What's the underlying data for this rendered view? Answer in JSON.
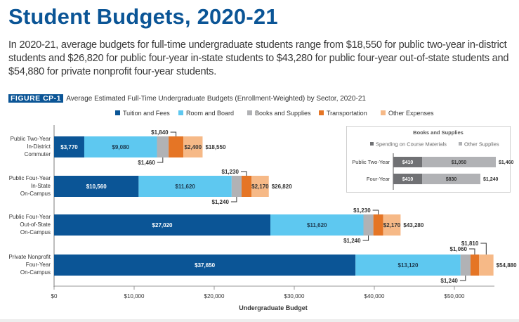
{
  "page": {
    "title": "Student Budgets, 2020-21",
    "description": "In 2020-21, average budgets for full-time undergraduate students range from $18,550 for public two-year in-district students and $26,820 for public four-year in-state students to $43,280 for public four-year out-of-state students and $54,880 for private nonprofit four-year students.",
    "figure_label": "FIGURE CP-1",
    "figure_title": "Average Estimated Full-Time Undergraduate Budgets (Enrollment-Weighted) by Sector, 2020-21"
  },
  "colors": {
    "tuition": "#0b5596",
    "room_board": "#5ec8f0",
    "books": "#b1b2b5",
    "transportation": "#e57525",
    "other": "#f6b987",
    "course_materials": "#707174",
    "other_supplies": "#b1b2b5"
  },
  "chart_data": [
    {
      "type": "bar",
      "orientation": "horizontal",
      "stacked": true,
      "title": "Average Estimated Full-Time Undergraduate Budgets (Enrollment-Weighted) by Sector, 2020-21",
      "xlabel": "Undergraduate Budget",
      "ylabel": "",
      "xlim": [
        0,
        55000
      ],
      "xticks": [
        0,
        10000,
        20000,
        30000,
        40000,
        50000
      ],
      "xtick_labels": [
        "$0",
        "$10,000",
        "$20,000",
        "$30,000",
        "$40,000",
        "$50,000"
      ],
      "legend_position": "top",
      "categories": [
        [
          "Public Two-Year",
          "In-District",
          "Commuter"
        ],
        [
          "Public Four-Year",
          "In-State",
          "On-Campus"
        ],
        [
          "Public Four-Year",
          "Out-of-State",
          "On-Campus"
        ],
        [
          "Private Nonprofit",
          "Four-Year",
          "On-Campus"
        ]
      ],
      "series": [
        {
          "name": "Tuition and Fees",
          "key": "tuition",
          "values": [
            3770,
            10560,
            27020,
            37650
          ],
          "labels": [
            "$3,770",
            "$10,560",
            "$27,020",
            "$37,650"
          ]
        },
        {
          "name": "Room and Board",
          "key": "room_board",
          "values": [
            9080,
            11620,
            11620,
            13120
          ],
          "labels": [
            "$9,080",
            "$11,620",
            "$11,620",
            "$13,120"
          ]
        },
        {
          "name": "Books and Supplies",
          "key": "books",
          "values": [
            1460,
            1240,
            1240,
            1240
          ],
          "labels": [
            "$1,460",
            "$1,240",
            "$1,240",
            "$1,240"
          ]
        },
        {
          "name": "Transportation",
          "key": "transportation",
          "values": [
            1840,
            1230,
            1230,
            1060
          ],
          "labels": [
            "$1,840",
            "$1,230",
            "$1,230",
            "$1,060"
          ]
        },
        {
          "name": "Other Expenses",
          "key": "other",
          "values": [
            2400,
            2170,
            2170,
            1810
          ],
          "labels": [
            "$2,400",
            "$2,170",
            "$2,170",
            "$1,810"
          ]
        }
      ],
      "totals": [
        18550,
        26820,
        43280,
        54880
      ],
      "total_labels": [
        "$18,550",
        "$26,820",
        "$43,280",
        "$54,880"
      ]
    },
    {
      "type": "bar",
      "orientation": "horizontal",
      "stacked": true,
      "title": "Books and Supplies",
      "legend_position": "top",
      "categories": [
        "Public Two-Year",
        "Four-Year"
      ],
      "series": [
        {
          "name": "Spending on Course Materials",
          "key": "course_materials",
          "values": [
            410,
            410
          ],
          "labels": [
            "$410",
            "$410"
          ]
        },
        {
          "name": "Other Supplies",
          "key": "other_supplies",
          "values": [
            1050,
            830
          ],
          "labels": [
            "$1,050",
            "$830"
          ]
        }
      ],
      "totals": [
        1460,
        1240
      ],
      "total_labels": [
        "$1,460",
        "$1,240"
      ]
    }
  ]
}
